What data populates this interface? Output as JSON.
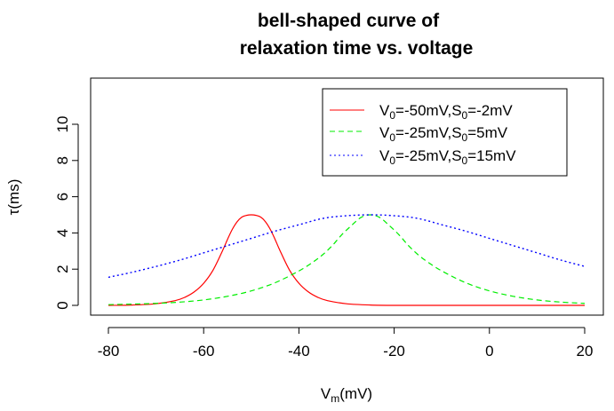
{
  "chart_data": {
    "type": "line",
    "title_lines": [
      "bell-shaped curve of",
      "relaxation time vs. voltage"
    ],
    "xlabel": {
      "main": "V",
      "sub": "m",
      "rest": "(mV)"
    },
    "ylabel": {
      "symbol": "τ",
      "rest": "(ms)"
    },
    "xlim": [
      -85,
      25
    ],
    "ylim": [
      -0.6,
      12.3
    ],
    "x_ticks": [
      -80,
      -60,
      -40,
      -20,
      0,
      20
    ],
    "y_ticks": [
      0,
      2,
      4,
      6,
      8,
      10
    ],
    "x_tick_labels": [
      "-80",
      "-60",
      "-40",
      "-20",
      "0",
      "20"
    ],
    "y_tick_labels": [
      "0",
      "2",
      "4",
      "6",
      "8",
      "10"
    ],
    "grid": false,
    "legend_position": "top-right",
    "series": [
      {
        "name": "V0=-50mV,S0=-2mV",
        "legend": {
          "a": "V",
          "a_sub": "0",
          "b": "=-50mV,S",
          "b_sub": "0",
          "c": "=-2mV"
        },
        "color": "#ff0000",
        "dash": "solid",
        "x": [
          -80,
          -75,
          -70,
          -66,
          -64,
          -62,
          -60,
          -58,
          -56,
          -55,
          -54,
          -53,
          -52,
          -51,
          -50,
          -49,
          -48,
          -47,
          -46,
          -45,
          -44,
          -42,
          -40,
          -38,
          -36,
          -34,
          -30,
          -25,
          -20,
          -10,
          0,
          10,
          20
        ],
        "y": [
          0.0,
          0.02,
          0.09,
          0.26,
          0.44,
          0.74,
          1.22,
          1.96,
          3.04,
          3.64,
          4.19,
          4.61,
          4.87,
          4.97,
          5.0,
          4.97,
          4.87,
          4.61,
          4.19,
          3.64,
          3.04,
          1.96,
          1.22,
          0.74,
          0.44,
          0.26,
          0.09,
          0.02,
          0.0,
          0.0,
          0.0,
          0.0,
          0.0
        ]
      },
      {
        "name": "V0=-25mV,S0=5mV",
        "legend": {
          "a": "V",
          "a_sub": "0",
          "b": "=-25mV,S",
          "b_sub": "0",
          "c": "=5mV"
        },
        "color": "#00ee00",
        "dash": "6,4",
        "x": [
          -80,
          -75,
          -70,
          -65,
          -60,
          -55,
          -50,
          -45,
          -40,
          -37,
          -35,
          -33,
          -31,
          -29,
          -27,
          -25,
          -23,
          -21,
          -19,
          -17,
          -15,
          -13,
          -10,
          -5,
          0,
          5,
          10,
          15,
          20
        ],
        "y": [
          0.04,
          0.07,
          0.11,
          0.18,
          0.3,
          0.5,
          0.8,
          1.25,
          1.9,
          2.4,
          2.8,
          3.3,
          3.9,
          4.4,
          4.85,
          5.0,
          4.85,
          4.4,
          3.9,
          3.3,
          2.8,
          2.4,
          1.9,
          1.25,
          0.8,
          0.5,
          0.3,
          0.18,
          0.11
        ]
      },
      {
        "name": "V0=-25mV,S0=15mV",
        "legend": {
          "a": "V",
          "a_sub": "0",
          "b": "=-25mV,S",
          "b_sub": "0",
          "c": "=15mV"
        },
        "color": "#0000ff",
        "dash": "2,3",
        "x": [
          -80,
          -75,
          -70,
          -65,
          -60,
          -55,
          -50,
          -45,
          -40,
          -35,
          -30,
          -25,
          -20,
          -15,
          -10,
          -5,
          0,
          5,
          10,
          15,
          20
        ],
        "y": [
          1.55,
          1.83,
          2.15,
          2.5,
          2.9,
          3.3,
          3.7,
          4.1,
          4.45,
          4.8,
          4.95,
          5.0,
          4.95,
          4.8,
          4.45,
          4.1,
          3.7,
          3.3,
          2.9,
          2.5,
          2.15
        ]
      }
    ]
  }
}
